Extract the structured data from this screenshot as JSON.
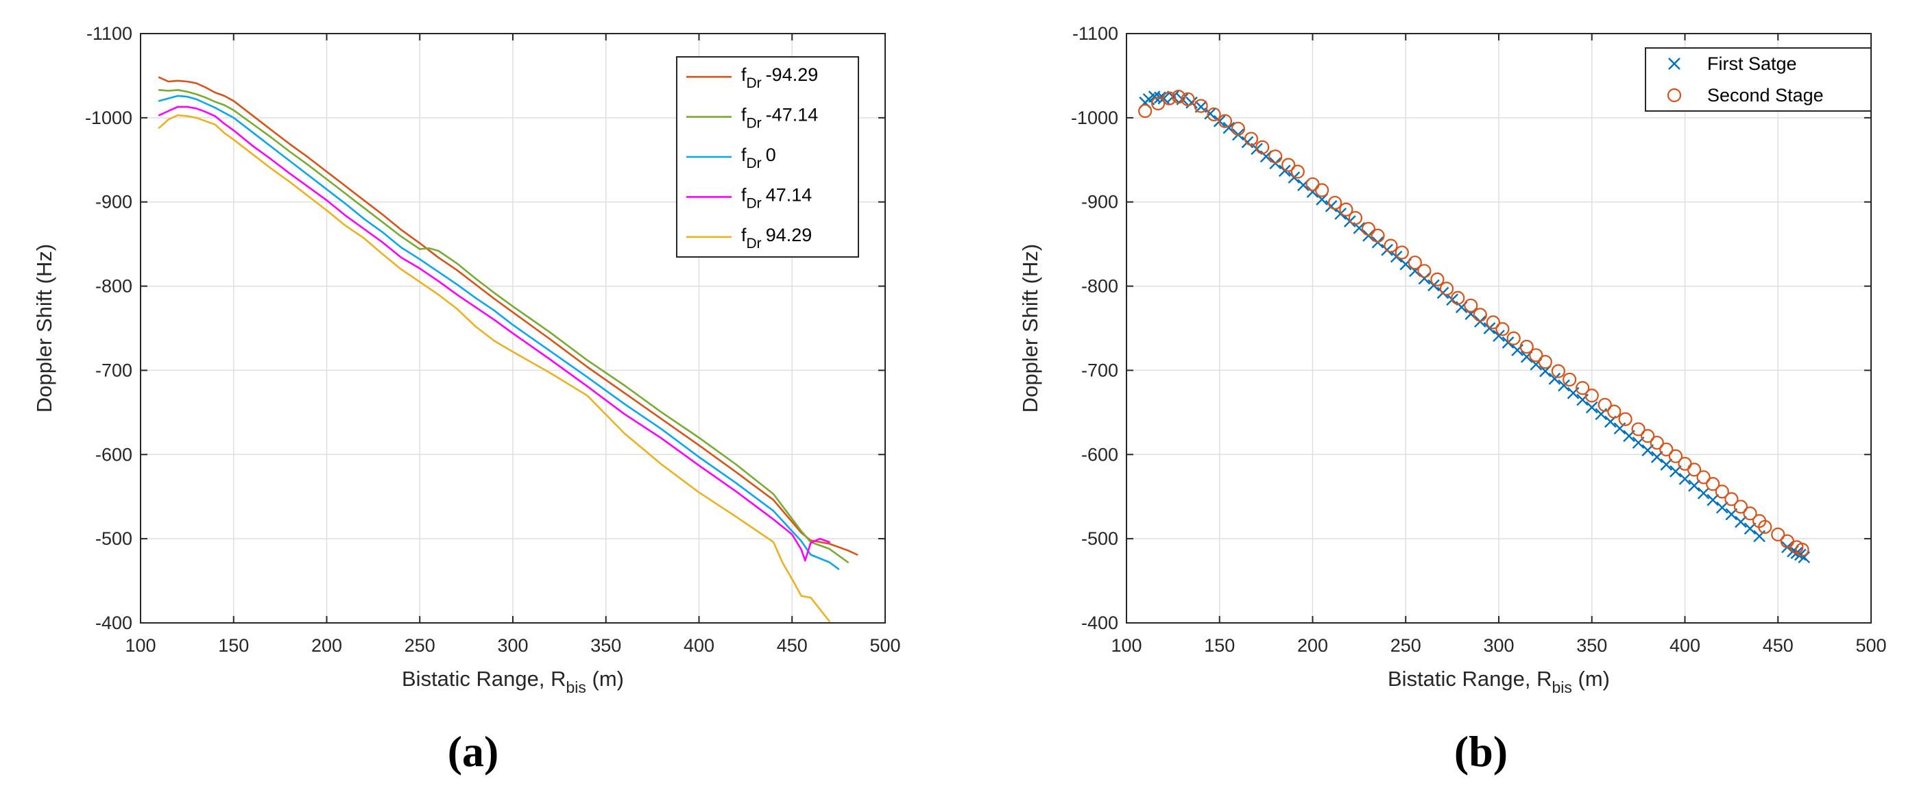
{
  "chart_data": [
    {
      "type": "line",
      "panel_label": "(a)",
      "title": "",
      "xlabel": {
        "main": "Bistatic Range, R",
        "sub": "bis",
        "suffix": " (m)"
      },
      "ylabel": "Doppler Shift (Hz)",
      "xlim": [
        100,
        500
      ],
      "ylim": [
        -1100,
        -400
      ],
      "y_reversed": true,
      "xticks": [
        100,
        150,
        200,
        250,
        300,
        350,
        400,
        450,
        500
      ],
      "yticks": [
        -1100,
        -1000,
        -900,
        -800,
        -700,
        -600,
        -500,
        -400
      ],
      "grid": true,
      "legend_position": "top-right",
      "series": [
        {
          "name": "-94.29",
          "legend_main": "f",
          "legend_sub": "Dr",
          "legend_value": "-94.29",
          "color": "#d95319",
          "x": [
            110,
            115,
            120,
            125,
            130,
            135,
            140,
            145,
            150,
            160,
            170,
            180,
            190,
            200,
            210,
            220,
            230,
            240,
            250,
            260,
            270,
            280,
            290,
            300,
            320,
            340,
            360,
            380,
            400,
            420,
            440,
            455,
            460,
            470,
            480,
            485
          ],
          "y": [
            -1048,
            -1043,
            -1044,
            -1043,
            -1041,
            -1036,
            -1030,
            -1026,
            -1020,
            -1003,
            -986,
            -969,
            -953,
            -936,
            -919,
            -902,
            -885,
            -867,
            -851,
            -834,
            -819,
            -802,
            -785,
            -769,
            -737,
            -704,
            -673,
            -642,
            -611,
            -579,
            -546,
            -507,
            -498,
            -494,
            -486,
            -481
          ]
        },
        {
          "name": "-47.14",
          "legend_main": "f",
          "legend_sub": "Dr",
          "legend_value": "-47.14",
          "color": "#77ac30",
          "x": [
            110,
            115,
            120,
            125,
            130,
            135,
            140,
            145,
            150,
            160,
            170,
            180,
            190,
            200,
            210,
            220,
            230,
            240,
            250,
            255,
            260,
            270,
            280,
            290,
            300,
            320,
            340,
            360,
            380,
            400,
            420,
            440,
            455,
            460,
            470,
            480
          ],
          "y": [
            -1033,
            -1032,
            -1033,
            -1031,
            -1028,
            -1024,
            -1019,
            -1015,
            -1009,
            -993,
            -977,
            -960,
            -944,
            -927,
            -910,
            -893,
            -876,
            -859,
            -844,
            -845,
            -842,
            -827,
            -809,
            -792,
            -776,
            -745,
            -712,
            -682,
            -650,
            -620,
            -588,
            -553,
            -509,
            -496,
            -488,
            -472
          ]
        },
        {
          "name": "0",
          "legend_main": "f",
          "legend_sub": "Dr",
          "legend_value": "0",
          "color": "#0aa7ee",
          "x": [
            110,
            115,
            120,
            125,
            130,
            135,
            140,
            145,
            150,
            160,
            170,
            180,
            190,
            200,
            210,
            220,
            230,
            240,
            250,
            260,
            270,
            280,
            290,
            300,
            320,
            340,
            360,
            380,
            400,
            420,
            440,
            455,
            460,
            470,
            475
          ],
          "y": [
            -1020,
            -1023,
            -1026,
            -1025,
            -1022,
            -1017,
            -1012,
            -1006,
            -1000,
            -983,
            -966,
            -949,
            -932,
            -915,
            -898,
            -880,
            -864,
            -846,
            -832,
            -817,
            -802,
            -786,
            -771,
            -754,
            -723,
            -692,
            -660,
            -630,
            -597,
            -566,
            -533,
            -497,
            -481,
            -472,
            -464
          ]
        },
        {
          "name": "47.14",
          "legend_main": "f",
          "legend_sub": "Dr",
          "legend_value": "47.14",
          "color": "#ff00ff",
          "x": [
            110,
            115,
            120,
            125,
            130,
            135,
            140,
            145,
            150,
            160,
            170,
            180,
            190,
            200,
            210,
            220,
            230,
            240,
            250,
            260,
            270,
            280,
            290,
            300,
            320,
            340,
            360,
            380,
            400,
            420,
            440,
            450,
            455,
            457,
            460,
            465,
            470
          ],
          "y": [
            -1003,
            -1008,
            -1013,
            -1013,
            -1011,
            -1007,
            -1002,
            -993,
            -985,
            -967,
            -951,
            -934,
            -918,
            -902,
            -884,
            -868,
            -852,
            -834,
            -821,
            -806,
            -790,
            -775,
            -760,
            -744,
            -713,
            -681,
            -648,
            -619,
            -587,
            -556,
            -523,
            -505,
            -487,
            -474,
            -495,
            -500,
            -496
          ]
        },
        {
          "name": "94.29",
          "legend_main": "f",
          "legend_sub": "Dr",
          "legend_value": "94.29",
          "color": "#edb120",
          "x": [
            110,
            115,
            120,
            125,
            130,
            135,
            140,
            145,
            150,
            160,
            170,
            180,
            190,
            200,
            210,
            220,
            230,
            240,
            250,
            260,
            270,
            280,
            290,
            300,
            320,
            340,
            360,
            380,
            400,
            420,
            440,
            445,
            450,
            455,
            460,
            470
          ],
          "y": [
            -988,
            -998,
            -1003,
            -1002,
            -1000,
            -996,
            -992,
            -982,
            -974,
            -957,
            -940,
            -924,
            -907,
            -890,
            -872,
            -857,
            -838,
            -820,
            -805,
            -790,
            -773,
            -752,
            -735,
            -722,
            -697,
            -670,
            -625,
            -588,
            -555,
            -526,
            -496,
            -471,
            -452,
            -432,
            -430,
            -402
          ]
        }
      ]
    },
    {
      "type": "scatter",
      "panel_label": "(b)",
      "title": "",
      "xlabel": {
        "main": "Bistatic Range, R",
        "sub": "bis",
        "suffix": " (m)"
      },
      "ylabel": "Doppler Shift (Hz)",
      "xlim": [
        100,
        500
      ],
      "ylim": [
        -1100,
        -400
      ],
      "y_reversed": true,
      "xticks": [
        100,
        150,
        200,
        250,
        300,
        350,
        400,
        450,
        500
      ],
      "yticks": [
        -1100,
        -1000,
        -900,
        -800,
        -700,
        -600,
        -500,
        -400
      ],
      "grid": true,
      "legend_position": "top-right",
      "series": [
        {
          "name": "First Satge",
          "marker": "x",
          "color": "#0072bd",
          "x": [
            110,
            112,
            115,
            118,
            120,
            125,
            130,
            135,
            140,
            145,
            150,
            155,
            160,
            165,
            170,
            175,
            180,
            185,
            190,
            195,
            200,
            205,
            210,
            215,
            220,
            225,
            230,
            235,
            240,
            245,
            250,
            255,
            260,
            265,
            270,
            275,
            280,
            285,
            290,
            295,
            300,
            305,
            310,
            315,
            320,
            325,
            330,
            335,
            340,
            345,
            350,
            355,
            360,
            365,
            370,
            375,
            380,
            385,
            390,
            395,
            400,
            405,
            410,
            415,
            420,
            425,
            430,
            435,
            440,
            455,
            458,
            460,
            462,
            464
          ],
          "y": [
            -1018,
            -1022,
            -1025,
            -1024,
            -1023,
            -1025,
            -1022,
            -1018,
            -1013,
            -1005,
            -996,
            -988,
            -980,
            -971,
            -963,
            -954,
            -946,
            -937,
            -929,
            -920,
            -912,
            -903,
            -895,
            -886,
            -877,
            -869,
            -860,
            -852,
            -843,
            -835,
            -826,
            -818,
            -809,
            -801,
            -792,
            -784,
            -775,
            -767,
            -758,
            -750,
            -741,
            -733,
            -724,
            -716,
            -707,
            -699,
            -690,
            -682,
            -673,
            -665,
            -656,
            -648,
            -639,
            -631,
            -622,
            -614,
            -605,
            -597,
            -588,
            -580,
            -571,
            -563,
            -554,
            -546,
            -537,
            -529,
            -520,
            -512,
            -503,
            -490,
            -485,
            -483,
            -481,
            -478
          ]
        },
        {
          "name": "Second Stage",
          "marker": "o",
          "color": "#d95319",
          "x": [
            110,
            117,
            123,
            128,
            133,
            140,
            147,
            153,
            160,
            167,
            173,
            180,
            187,
            192,
            200,
            205,
            212,
            218,
            223,
            230,
            235,
            242,
            248,
            255,
            260,
            267,
            272,
            278,
            285,
            290,
            297,
            302,
            308,
            315,
            320,
            325,
            332,
            338,
            345,
            350,
            357,
            362,
            368,
            375,
            380,
            385,
            390,
            395,
            400,
            405,
            410,
            415,
            420,
            425,
            430,
            435,
            440,
            443,
            450,
            455,
            460,
            463
          ],
          "y": [
            -1008,
            -1017,
            -1023,
            -1025,
            -1022,
            -1014,
            -1004,
            -996,
            -987,
            -975,
            -965,
            -954,
            -944,
            -936,
            -921,
            -914,
            -899,
            -891,
            -881,
            -868,
            -860,
            -848,
            -840,
            -828,
            -818,
            -808,
            -797,
            -786,
            -777,
            -766,
            -757,
            -749,
            -738,
            -728,
            -718,
            -710,
            -699,
            -689,
            -679,
            -670,
            -659,
            -651,
            -642,
            -630,
            -622,
            -614,
            -606,
            -598,
            -589,
            -582,
            -573,
            -565,
            -556,
            -547,
            -538,
            -530,
            -521,
            -514,
            -505,
            -497,
            -490,
            -487
          ]
        }
      ]
    }
  ]
}
